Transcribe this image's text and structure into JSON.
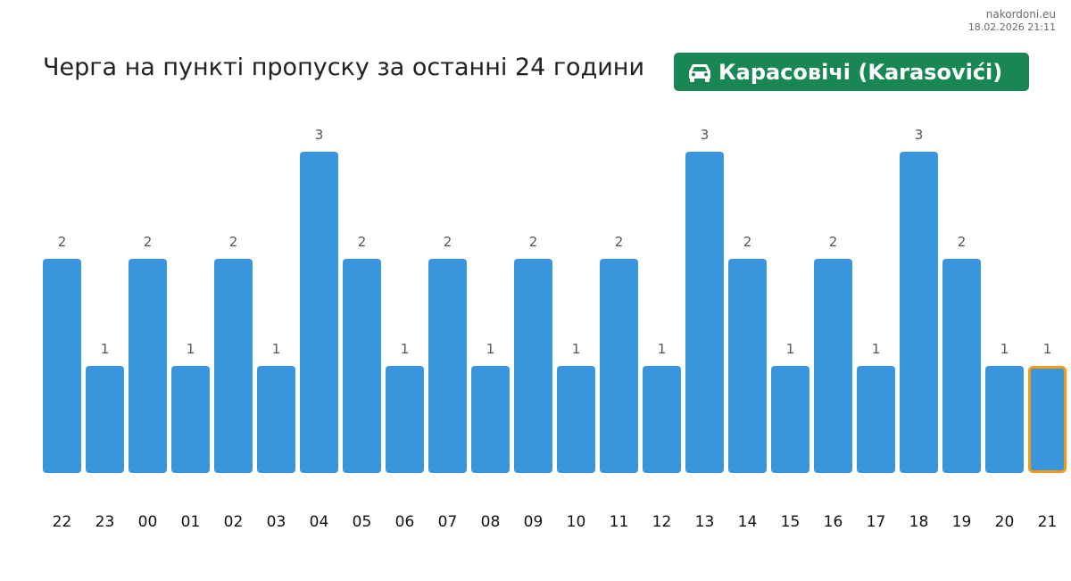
{
  "site": {
    "name": "nakordoni.eu",
    "timestamp": "18.02.2026 21:11"
  },
  "header": {
    "title": "Черга на пункті пропуску за останні 24 години",
    "badge_label": "Карасовічі (Karasovići)",
    "badge_icon": "car-icon",
    "badge_color": "#198754"
  },
  "chart_data": {
    "type": "bar",
    "categories": [
      "22",
      "23",
      "00",
      "01",
      "02",
      "03",
      "04",
      "05",
      "06",
      "07",
      "08",
      "09",
      "10",
      "11",
      "12",
      "13",
      "14",
      "15",
      "16",
      "17",
      "18",
      "19",
      "20",
      "21"
    ],
    "values": [
      2,
      1,
      2,
      1,
      2,
      1,
      3,
      2,
      1,
      2,
      1,
      2,
      1,
      2,
      1,
      3,
      2,
      1,
      2,
      1,
      3,
      2,
      1,
      1
    ],
    "bar_color": "#3897dc",
    "highlight_index": 23,
    "highlight_color": "#f39c12",
    "ylim": [
      0,
      3
    ],
    "grid": false
  }
}
